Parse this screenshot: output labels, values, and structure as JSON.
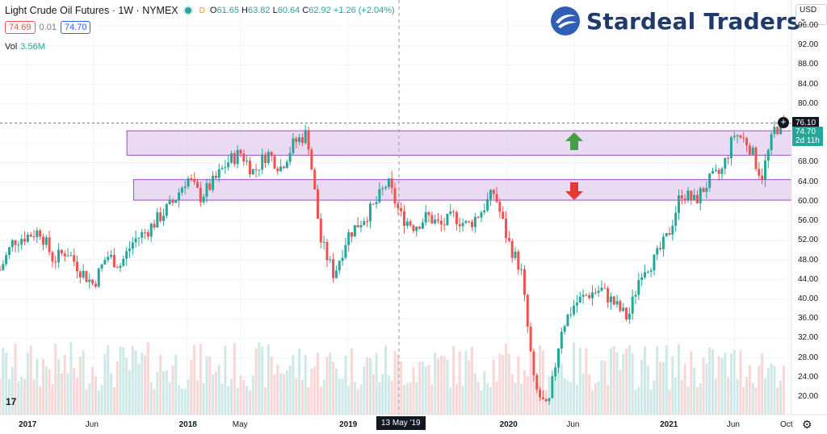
{
  "header": {
    "symbol": "Light Crude Oil Futures · 1W · NYMEX",
    "badge": "D",
    "open_label": "O",
    "open": "61.65",
    "high_label": "H",
    "high": "63.82",
    "low_label": "L",
    "low": "60.64",
    "close_label": "C",
    "close": "62.92",
    "change": "+1.26 (+2.04%)"
  },
  "quote": {
    "bid": "74.69",
    "spread": "0.01",
    "ask": "74.70"
  },
  "volume": {
    "label": "Vol",
    "value": "3.56M"
  },
  "brand": {
    "name": "Stardeal Traders",
    "color": "#1f3a6b"
  },
  "currency_button": "USD",
  "price_axis": {
    "ticks": [
      "96.00",
      "92.00",
      "88.00",
      "84.00",
      "80.00",
      "76.00",
      "72.00",
      "68.00",
      "64.00",
      "60.00",
      "56.00",
      "52.00",
      "48.00",
      "44.00",
      "40.00",
      "36.00",
      "32.00",
      "28.00",
      "24.00",
      "20.00"
    ]
  },
  "time_axis": {
    "ticks": [
      {
        "label": "2017",
        "bold": true
      },
      {
        "label": "Jun",
        "bold": false
      },
      {
        "label": "2018",
        "bold": true
      },
      {
        "label": "May",
        "bold": false
      },
      {
        "label": "2019",
        "bold": true
      },
      {
        "label": "2020",
        "bold": true
      },
      {
        "label": "Jun",
        "bold": false
      },
      {
        "label": "2021",
        "bold": true
      },
      {
        "label": "Jun",
        "bold": false
      },
      {
        "label": "Oct",
        "bold": false
      }
    ]
  },
  "crosshair": {
    "date": "13 May '19"
  },
  "last_price": "76.10",
  "countdown": {
    "price": "74.70",
    "time": "2d 11h"
  },
  "colors": {
    "up": "#26a69a",
    "down": "#ef5350",
    "zone_fill": "#e6d3f0",
    "zone_border": "#9c4fc4"
  },
  "icons": {
    "up_arrow": "arrow-up-icon",
    "down_arrow": "arrow-down-icon",
    "settings": "gear-icon",
    "logo": "tradingview-logo-icon",
    "plus": "plus-circle-icon"
  },
  "chart_data": {
    "type": "candlestick",
    "unit": "USD",
    "y_range": [
      18,
      98
    ],
    "x_range": [
      "2016-11",
      "2021-10"
    ],
    "resistance_zone": [
      69.5,
      74.5
    ],
    "support_zone": [
      60.3,
      64.5
    ],
    "weekly_close_path": [
      [
        "2016-11",
        46
      ],
      [
        "2016-12",
        52
      ],
      [
        "2017-01",
        53
      ],
      [
        "2017-02",
        54
      ],
      [
        "2017-03",
        48
      ],
      [
        "2017-04",
        50
      ],
      [
        "2017-05",
        46
      ],
      [
        "2017-06",
        43
      ],
      [
        "2017-07",
        49
      ],
      [
        "2017-08",
        47
      ],
      [
        "2017-09",
        52
      ],
      [
        "2017-10",
        54
      ],
      [
        "2017-11",
        57
      ],
      [
        "2017-12",
        60
      ],
      [
        "2018-01",
        65
      ],
      [
        "2018-02",
        61
      ],
      [
        "2018-03",
        64
      ],
      [
        "2018-04",
        68
      ],
      [
        "2018-05",
        70
      ],
      [
        "2018-06",
        66
      ],
      [
        "2018-07",
        70
      ],
      [
        "2018-08",
        67
      ],
      [
        "2018-09",
        72
      ],
      [
        "2018-10",
        74
      ],
      [
        "2018-11",
        52
      ],
      [
        "2018-12",
        45
      ],
      [
        "2019-01",
        53
      ],
      [
        "2019-02",
        56
      ],
      [
        "2019-03",
        59
      ],
      [
        "2019-04",
        64
      ],
      [
        "2019-05",
        57
      ],
      [
        "2019-06",
        55
      ],
      [
        "2019-07",
        57
      ],
      [
        "2019-08",
        55
      ],
      [
        "2019-09",
        57
      ],
      [
        "2019-10",
        55
      ],
      [
        "2019-11",
        58
      ],
      [
        "2019-12",
        62
      ],
      [
        "2020-01",
        52
      ],
      [
        "2020-02",
        46
      ],
      [
        "2020-03",
        22
      ],
      [
        "2020-04",
        17
      ],
      [
        "2020-05",
        34
      ],
      [
        "2020-06",
        39
      ],
      [
        "2020-07",
        41
      ],
      [
        "2020-08",
        42
      ],
      [
        "2020-09",
        39
      ],
      [
        "2020-10",
        36
      ],
      [
        "2020-11",
        46
      ],
      [
        "2020-12",
        48
      ],
      [
        "2021-01",
        53
      ],
      [
        "2021-02",
        62
      ],
      [
        "2021-03",
        60
      ],
      [
        "2021-04",
        64
      ],
      [
        "2021-05",
        66
      ],
      [
        "2021-06",
        74
      ],
      [
        "2021-07",
        72
      ],
      [
        "2021-08",
        65
      ],
      [
        "2021-09",
        75
      ],
      [
        "2021-10",
        76
      ]
    ]
  }
}
